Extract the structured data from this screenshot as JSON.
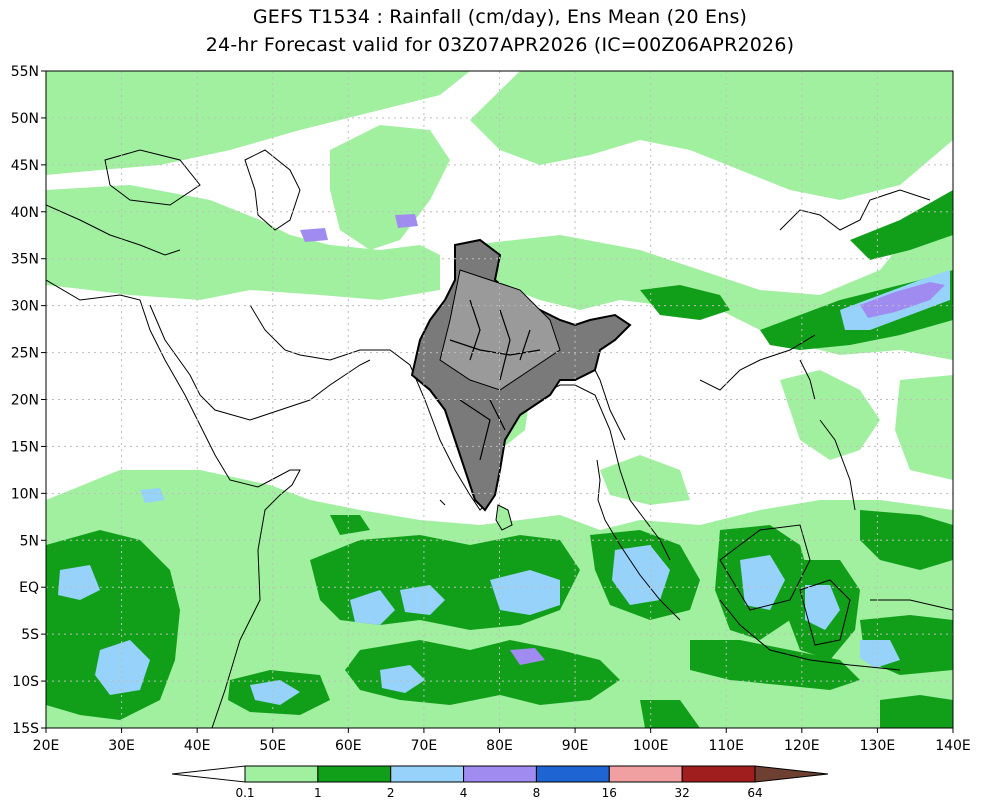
{
  "title_line1": "GEFS T1534 : Rainfall (cm/day), Ens Mean (20 Ens)",
  "title_line2": "24-hr Forecast valid for 03Z07APR2026 (IC=00Z06APR2026)",
  "map": {
    "lon_range": [
      20,
      140
    ],
    "lat_range": [
      -15,
      55
    ],
    "grid": true,
    "lat_ticks": [
      {
        "v": 55,
        "label": "55N"
      },
      {
        "v": 50,
        "label": "50N"
      },
      {
        "v": 45,
        "label": "45N"
      },
      {
        "v": 40,
        "label": "40N"
      },
      {
        "v": 35,
        "label": "35N"
      },
      {
        "v": 30,
        "label": "30N"
      },
      {
        "v": 25,
        "label": "25N"
      },
      {
        "v": 20,
        "label": "20N"
      },
      {
        "v": 15,
        "label": "15N"
      },
      {
        "v": 10,
        "label": "10N"
      },
      {
        "v": 5,
        "label": "5N"
      },
      {
        "v": 0,
        "label": "EQ"
      },
      {
        "v": -5,
        "label": "5S"
      },
      {
        "v": -10,
        "label": "10S"
      },
      {
        "v": -15,
        "label": "15S"
      }
    ],
    "lon_ticks": [
      {
        "v": 20,
        "label": "20E"
      },
      {
        "v": 30,
        "label": "30E"
      },
      {
        "v": 40,
        "label": "40E"
      },
      {
        "v": 50,
        "label": "50E"
      },
      {
        "v": 60,
        "label": "60E"
      },
      {
        "v": 70,
        "label": "70E"
      },
      {
        "v": 80,
        "label": "80E"
      },
      {
        "v": 90,
        "label": "90E"
      },
      {
        "v": 100,
        "label": "100E"
      },
      {
        "v": 110,
        "label": "110E"
      },
      {
        "v": 120,
        "label": "120E"
      },
      {
        "v": 130,
        "label": "130E"
      },
      {
        "v": 140,
        "label": "140E"
      }
    ]
  },
  "colorbar": {
    "levels": [
      "0.1",
      "1",
      "2",
      "4",
      "8",
      "16",
      "32",
      "64"
    ],
    "colors": [
      "#a0f0a0",
      "#119f1a",
      "#96d2fa",
      "#a08cf0",
      "#1e64d2",
      "#f0a0a0",
      "#a01e1e"
    ],
    "under_color": "#ffffff",
    "over_color": "#6e4032"
  },
  "rain_colors": {
    "light": "#a0f0a0",
    "medium": "#119f1a",
    "heavy": "#96d2fa",
    "very_heavy": "#a08cf0"
  }
}
